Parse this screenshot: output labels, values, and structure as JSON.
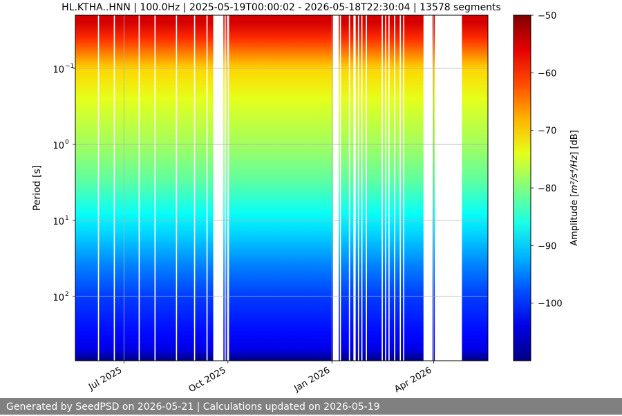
{
  "chart_data": {
    "type": "heatmap",
    "title": "HL.KTHA..HNN | 100.0Hz | 2025-05-19T00:00:02 - 2026-05-18T22:30:04 | 13578 segments",
    "ylabel": "Period [s]",
    "y_scale": "log",
    "y_inverted": true,
    "ylim": [
      0.02,
      700
    ],
    "y_ticks": [
      {
        "value": 0.1,
        "base": "10",
        "exp": "−1"
      },
      {
        "value": 1,
        "base": "10",
        "exp": "0"
      },
      {
        "value": 10,
        "base": "10",
        "exp": "1"
      },
      {
        "value": 100,
        "base": "10",
        "exp": "2"
      }
    ],
    "x_type": "date",
    "xlim": [
      "2025-05-19",
      "2026-05-19"
    ],
    "x_ticks": [
      {
        "date": "2025-07-01",
        "label": "Jul 2025"
      },
      {
        "date": "2025-10-01",
        "label": "Oct 2025"
      },
      {
        "date": "2026-01-01",
        "label": "Jan 2026"
      },
      {
        "date": "2026-04-01",
        "label": "Apr 2026"
      }
    ],
    "grid": true,
    "colorbar": {
      "label_pre": "Amplitude [",
      "label_math": "m²/s⁴/Hz",
      "label_post": "] [dB]",
      "colormap": "jet",
      "vmin": -110,
      "vmax": -50,
      "ticks": [
        {
          "value": -50,
          "label": "−50"
        },
        {
          "value": -60,
          "label": "−60"
        },
        {
          "value": -70,
          "label": "−70"
        },
        {
          "value": -80,
          "label": "−80"
        },
        {
          "value": -90,
          "label": "−90"
        },
        {
          "value": -100,
          "label": "−100"
        }
      ]
    },
    "amplitude_profile": {
      "period_s": [
        0.025,
        0.04,
        0.1,
        0.25,
        1,
        3,
        8,
        15,
        40,
        100,
        300,
        500,
        700
      ],
      "db": [
        -55,
        -60,
        -70,
        -74,
        -78,
        -82,
        -87,
        -90,
        -95,
        -99,
        -102,
        -104,
        -110
      ]
    },
    "data_gaps": [
      [
        "2025-06-08",
        "2025-06-09"
      ],
      [
        "2025-06-22",
        "2025-06-23"
      ],
      [
        "2025-07-14",
        "2025-07-15"
      ],
      [
        "2025-07-28",
        "2025-07-29"
      ],
      [
        "2025-08-16",
        "2025-08-17"
      ],
      [
        "2025-09-01",
        "2025-09-02"
      ],
      [
        "2025-09-12",
        "2025-09-13"
      ],
      [
        "2025-09-18",
        "2025-09-27"
      ],
      [
        "2025-09-28",
        "2025-09-29"
      ],
      [
        "2025-09-30",
        "2025-10-02"
      ],
      [
        "2026-01-02",
        "2026-01-07"
      ],
      [
        "2026-01-08",
        "2026-01-09"
      ],
      [
        "2026-01-16",
        "2026-01-17"
      ],
      [
        "2026-01-20",
        "2026-01-22"
      ],
      [
        "2026-01-24",
        "2026-01-25"
      ],
      [
        "2026-01-27",
        "2026-01-28"
      ],
      [
        "2026-01-31",
        "2026-02-01"
      ],
      [
        "2026-02-14",
        "2026-02-15"
      ],
      [
        "2026-02-17",
        "2026-02-18"
      ],
      [
        "2026-02-20",
        "2026-02-21"
      ],
      [
        "2026-02-25",
        "2026-02-26"
      ],
      [
        "2026-03-02",
        "2026-03-03"
      ],
      [
        "2026-03-05",
        "2026-03-06"
      ],
      [
        "2026-03-23",
        "2026-03-31"
      ],
      [
        "2026-04-02",
        "2026-04-26"
      ]
    ]
  },
  "footer": {
    "text": "Generated by SeedPSD on 2026-05-21 | Calculations updated on 2026-05-19"
  }
}
